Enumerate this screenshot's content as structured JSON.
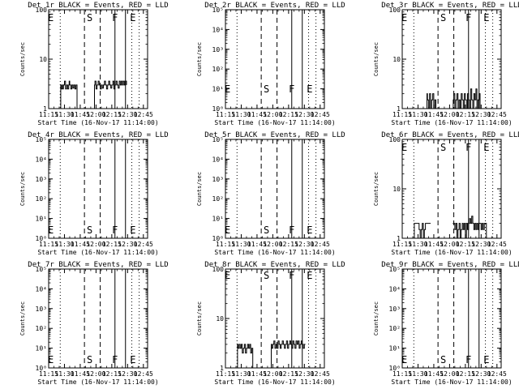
{
  "figure": {
    "xlabel": "Start Time (16-Nov-17 11:14:00)",
    "ylabel": "Counts/sec",
    "xtick_labels": [
      "11:15",
      "11:30",
      "11:45",
      "12:00",
      "12:15",
      "12:30",
      "12:45"
    ],
    "marker_labels": {
      "E": "E",
      "S": "S",
      "F": "F"
    },
    "colors": {
      "events": "#000000",
      "lld": "#ff0000"
    }
  },
  "chart_data": [
    {
      "type": "line",
      "title": "Det 1r BLACK = Events, RED = LLD",
      "yscale": "log",
      "ylim": [
        1,
        100
      ],
      "ytick_labels": [
        "1",
        "10",
        "100"
      ],
      "xlim_minutes": [
        1,
        95
      ],
      "markers": [
        {
          "label": "E",
          "x_min": 3
        },
        {
          "label": "S",
          "x_min": 40
        },
        {
          "label": "F",
          "x_min": 64
        },
        {
          "label": "E",
          "x_min": 81
        }
      ],
      "dashed_lines_min": [
        35,
        50
      ],
      "solid_lines_min": [
        64,
        74
      ],
      "dotted_lines_min": [
        12,
        80,
        87
      ],
      "series": [
        {
          "name": "BLACK",
          "segments": [
            {
              "x": [
                12,
                12.5,
                13,
                14,
                14.5,
                15,
                16,
                17,
                18,
                19,
                20,
                20.5,
                21,
                22,
                23,
                24,
                25,
                26,
                27,
                28
              ],
              "y": [
                1,
                3,
                2.5,
                3,
                2.5,
                3,
                3.6,
                2.5,
                3,
                2.5,
                3,
                3.6,
                3,
                2.5,
                3,
                2.6,
                3,
                2.5,
                3,
                1
              ]
            },
            {
              "x": [
                44,
                44.5,
                45,
                46,
                47,
                48,
                49,
                50,
                51,
                52,
                53,
                54,
                55,
                56,
                57,
                58,
                59,
                60,
                61,
                62,
                63,
                64,
                65,
                66,
                67,
                68,
                69,
                70,
                71,
                72,
                73,
                74,
                75
              ],
              "y": [
                1,
                3,
                3.6,
                2.5,
                3,
                3.6,
                3,
                2.5,
                3,
                2.6,
                3,
                3.6,
                3,
                2.5,
                3,
                3.6,
                3,
                2.6,
                3,
                3.6,
                2.5,
                3,
                3.6,
                3,
                2.6,
                3.6,
                3,
                3.6,
                3,
                3.6,
                3,
                3.6,
                3
              ]
            }
          ]
        }
      ]
    },
    {
      "type": "line",
      "title": "Det 2r BLACK = Events, RED = LLD",
      "yscale": "log",
      "ylim": [
        1,
        100000
      ],
      "ytick_labels": [
        "10⁰",
        "10¹",
        "10²",
        "10³",
        "10⁴",
        "10⁵"
      ],
      "xlim_minutes": [
        1,
        95
      ],
      "markers": [
        {
          "label": "E",
          "x_min": 3
        },
        {
          "label": "S",
          "x_min": 40
        },
        {
          "label": "F",
          "x_min": 64
        },
        {
          "label": "E",
          "x_min": 81
        }
      ],
      "dashed_lines_min": [
        35,
        50
      ],
      "solid_lines_min": [
        64,
        74
      ],
      "dotted_lines_min": [
        12,
        80,
        87
      ],
      "series": [
        {
          "name": "BLACK",
          "segments": []
        }
      ]
    },
    {
      "type": "line",
      "title": "Det 3r BLACK = Events, RED = LLD",
      "yscale": "log",
      "ylim": [
        1,
        100
      ],
      "ytick_labels": [
        "1",
        "10",
        "100"
      ],
      "xlim_minutes": [
        1,
        95
      ],
      "markers": [
        {
          "label": "E",
          "x_min": 3
        },
        {
          "label": "S",
          "x_min": 40
        },
        {
          "label": "F",
          "x_min": 64
        },
        {
          "label": "E",
          "x_min": 81
        }
      ],
      "dashed_lines_min": [
        35,
        50
      ],
      "solid_lines_min": [
        64,
        74
      ],
      "dotted_lines_min": [
        12,
        80,
        87
      ],
      "series": [
        {
          "name": "BLACK",
          "segments": [
            {
              "x": [
                24,
                24.5,
                25,
                26,
                27,
                28,
                29,
                30,
                31,
                32,
                33,
                34
              ],
              "y": [
                1,
                2,
                1.5,
                1,
                2,
                1,
                1.5,
                2,
                1,
                1.5,
                1,
                1
              ]
            },
            {
              "x": [
                49,
                49.5,
                50,
                51,
                52,
                53,
                54,
                55,
                56,
                57,
                58,
                59,
                60,
                61,
                62,
                63,
                64,
                65,
                66,
                67,
                68,
                69,
                70,
                71,
                72,
                73,
                74,
                75,
                76
              ],
              "y": [
                1,
                1.5,
                2,
                1,
                1.5,
                2,
                1,
                1.5,
                1,
                2,
                1.5,
                1,
                2,
                1.5,
                1,
                2,
                1.5,
                1,
                2.5,
                1.5,
                1,
                2,
                1.5,
                2.5,
                1,
                1.5,
                2,
                1,
                1
              ]
            }
          ]
        }
      ]
    },
    {
      "type": "line",
      "title": "Det 4r BLACK = Events, RED = LLD",
      "yscale": "log",
      "ylim": [
        1,
        100000
      ],
      "ytick_labels": [
        "10⁰",
        "10¹",
        "10²",
        "10³",
        "10⁴",
        "10⁵"
      ],
      "xlim_minutes": [
        1,
        95
      ],
      "markers": [
        {
          "label": "E",
          "x_min": 3
        },
        {
          "label": "S",
          "x_min": 40
        },
        {
          "label": "F",
          "x_min": 64
        },
        {
          "label": "E",
          "x_min": 81
        }
      ],
      "dashed_lines_min": [
        35,
        50
      ],
      "solid_lines_min": [
        64,
        74
      ],
      "dotted_lines_min": [
        12,
        80,
        87
      ],
      "series": [
        {
          "name": "BLACK",
          "segments": []
        }
      ]
    },
    {
      "type": "line",
      "title": "Det 5r BLACK = Events, RED = LLD",
      "yscale": "log",
      "ylim": [
        1,
        100000
      ],
      "ytick_labels": [
        "10⁰",
        "10¹",
        "10²",
        "10³",
        "10⁴",
        "10⁵"
      ],
      "xlim_minutes": [
        1,
        95
      ],
      "markers": [
        {
          "label": "E",
          "x_min": 3
        },
        {
          "label": "S",
          "x_min": 40
        },
        {
          "label": "F",
          "x_min": 64
        },
        {
          "label": "E",
          "x_min": 81
        }
      ],
      "dashed_lines_min": [
        35,
        50
      ],
      "solid_lines_min": [
        64,
        74
      ],
      "dotted_lines_min": [
        12,
        80,
        87
      ],
      "series": [
        {
          "name": "BLACK",
          "segments": []
        }
      ]
    },
    {
      "type": "line",
      "title": "Det 6r BLACK = Events, RED = LLD",
      "yscale": "log",
      "ylim": [
        1,
        100
      ],
      "ytick_labels": [
        "1",
        "10",
        "100"
      ],
      "xlim_minutes": [
        1,
        95
      ],
      "markers": [
        {
          "label": "E",
          "x_min": 3
        },
        {
          "label": "S",
          "x_min": 40
        },
        {
          "label": "F",
          "x_min": 64
        },
        {
          "label": "E",
          "x_min": 81
        }
      ],
      "dashed_lines_min": [
        35,
        50
      ],
      "solid_lines_min": [
        64,
        74
      ],
      "dotted_lines_min": [
        12,
        80,
        87
      ],
      "series": [
        {
          "name": "BLACK",
          "segments": [
            {
              "x": [
                12,
                12.5,
                13,
                14,
                15,
                16,
                17,
                18,
                19,
                20,
                21,
                22,
                23,
                24,
                25,
                26,
                27,
                28
              ],
              "y": [
                1,
                2,
                2,
                2,
                2,
                2,
                1.5,
                1,
                1.5,
                2,
                1,
                1.5,
                2,
                2,
                2,
                2,
                2,
                2
              ]
            },
            {
              "x": [
                49,
                50,
                51,
                52,
                53,
                54,
                55,
                56,
                57,
                58,
                59,
                60,
                61,
                62,
                63,
                64,
                65,
                66,
                67,
                68,
                69,
                70,
                71,
                72,
                73,
                74,
                75,
                76,
                77,
                78,
                79,
                80,
                81
              ],
              "y": [
                2,
                2,
                1.5,
                2,
                1,
                1.5,
                2,
                1,
                1.5,
                2,
                1.5,
                2,
                1,
                2,
                1.5,
                2,
                2.5,
                2,
                2.8,
                2,
                1.5,
                2,
                1.5,
                2,
                1.5,
                2,
                2,
                1.5,
                2,
                1.5,
                2,
                2,
                1
              ]
            }
          ]
        }
      ]
    },
    {
      "type": "line",
      "title": "Det 7r BLACK = Events, RED = LLD",
      "yscale": "log",
      "ylim": [
        1,
        100000
      ],
      "ytick_labels": [
        "10⁰",
        "10¹",
        "10²",
        "10³",
        "10⁴",
        "10⁵"
      ],
      "xlim_minutes": [
        1,
        95
      ],
      "markers": [
        {
          "label": "E",
          "x_min": 3
        },
        {
          "label": "S",
          "x_min": 40
        },
        {
          "label": "F",
          "x_min": 64
        },
        {
          "label": "E",
          "x_min": 81
        }
      ],
      "dashed_lines_min": [
        35,
        50
      ],
      "solid_lines_min": [
        64,
        74
      ],
      "dotted_lines_min": [
        12,
        80,
        87
      ],
      "series": [
        {
          "name": "BLACK",
          "segments": []
        }
      ]
    },
    {
      "type": "line",
      "title": "Det 8r BLACK = Events, RED = LLD",
      "yscale": "log",
      "ylim": [
        1,
        100
      ],
      "ytick_labels": [
        "1",
        "10",
        "100"
      ],
      "xlim_minutes": [
        1,
        95
      ],
      "markers": [
        {
          "label": "E",
          "x_min": 3
        },
        {
          "label": "S",
          "x_min": 40
        },
        {
          "label": "F",
          "x_min": 64
        },
        {
          "label": "E",
          "x_min": 81
        }
      ],
      "dashed_lines_min": [
        35,
        50
      ],
      "solid_lines_min": [
        64,
        74
      ],
      "dotted_lines_min": [
        12,
        80,
        87
      ],
      "series": [
        {
          "name": "BLACK",
          "segments": [
            {
              "x": [
                12,
                12.5,
                13,
                14,
                15,
                16,
                17,
                18,
                19,
                20,
                21,
                22,
                23,
                24,
                25,
                26,
                27
              ],
              "y": [
                1,
                3,
                2.5,
                3,
                2.5,
                3,
                2,
                2.5,
                3,
                2,
                2.5,
                3,
                2.5,
                3,
                2,
                2.5,
                1
              ]
            },
            {
              "x": [
                44,
                44.5,
                45,
                46,
                47,
                48,
                49,
                50,
                51,
                52,
                53,
                54,
                55,
                56,
                57,
                58,
                59,
                60,
                61,
                62,
                63,
                64,
                65,
                66,
                67,
                68,
                69,
                70,
                71,
                72,
                73,
                74,
                75,
                76,
                77
              ],
              "y": [
                1,
                3,
                2.5,
                3,
                3.5,
                2.5,
                3,
                2.5,
                3.5,
                3,
                2.5,
                3,
                3.5,
                3,
                2.5,
                3,
                3.5,
                2.5,
                3,
                3.5,
                3,
                2.5,
                3.5,
                3,
                2.5,
                3.5,
                3,
                3.5,
                2.5,
                3,
                3.5,
                3,
                2.5,
                3,
                3
              ]
            }
          ]
        }
      ]
    },
    {
      "type": "line",
      "title": "Det 9r BLACK = Events, RED = LLD",
      "yscale": "log",
      "ylim": [
        1,
        100000
      ],
      "ytick_labels": [
        "10⁰",
        "10¹",
        "10²",
        "10³",
        "10⁴",
        "10⁵"
      ],
      "xlim_minutes": [
        1,
        95
      ],
      "markers": [
        {
          "label": "E",
          "x_min": 3
        },
        {
          "label": "S",
          "x_min": 40
        },
        {
          "label": "F",
          "x_min": 64
        },
        {
          "label": "E",
          "x_min": 81
        }
      ],
      "dashed_lines_min": [
        35,
        50
      ],
      "solid_lines_min": [
        64,
        74
      ],
      "dotted_lines_min": [
        12,
        80,
        87
      ],
      "series": [
        {
          "name": "BLACK",
          "segments": []
        }
      ]
    }
  ]
}
